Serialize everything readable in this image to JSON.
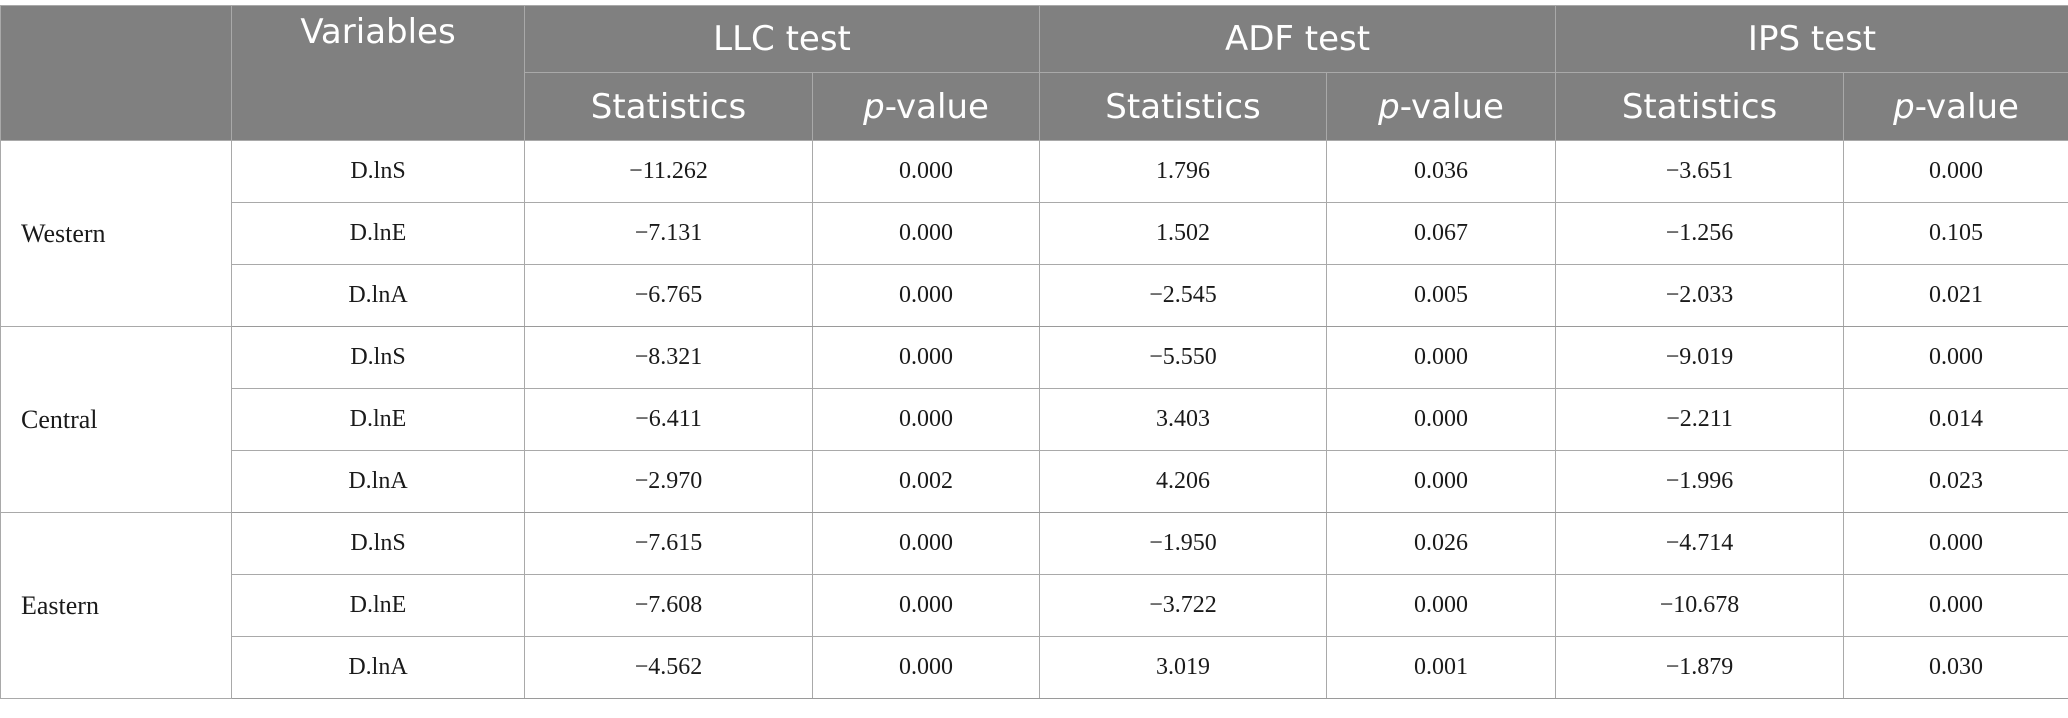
{
  "header": {
    "variables_label": "Variables",
    "groups": [
      "LLC test",
      "ADF test",
      "IPS test"
    ],
    "sub": {
      "statistics_label": "Statistics",
      "pvalue_italic": "p",
      "pvalue_rest": "-value"
    }
  },
  "regions": [
    {
      "name": "Western",
      "rows": [
        {
          "variable": "D.lnS",
          "llc_stat": "−11.262",
          "llc_p": "0.000",
          "adf_stat": "1.796",
          "adf_p": "0.036",
          "ips_stat": "−3.651",
          "ips_p": "0.000"
        },
        {
          "variable": "D.lnE",
          "llc_stat": "−7.131",
          "llc_p": "0.000",
          "adf_stat": "1.502",
          "adf_p": "0.067",
          "ips_stat": "−1.256",
          "ips_p": "0.105"
        },
        {
          "variable": "D.lnA",
          "llc_stat": "−6.765",
          "llc_p": "0.000",
          "adf_stat": "−2.545",
          "adf_p": "0.005",
          "ips_stat": "−2.033",
          "ips_p": "0.021"
        }
      ]
    },
    {
      "name": "Central",
      "rows": [
        {
          "variable": "D.lnS",
          "llc_stat": "−8.321",
          "llc_p": "0.000",
          "adf_stat": "−5.550",
          "adf_p": "0.000",
          "ips_stat": "−9.019",
          "ips_p": "0.000"
        },
        {
          "variable": "D.lnE",
          "llc_stat": "−6.411",
          "llc_p": "0.000",
          "adf_stat": "3.403",
          "adf_p": "0.000",
          "ips_stat": "−2.211",
          "ips_p": "0.014"
        },
        {
          "variable": "D.lnA",
          "llc_stat": "−2.970",
          "llc_p": "0.002",
          "adf_stat": "4.206",
          "adf_p": "0.000",
          "ips_stat": "−1.996",
          "ips_p": "0.023"
        }
      ]
    },
    {
      "name": "Eastern",
      "rows": [
        {
          "variable": "D.lnS",
          "llc_stat": "−7.615",
          "llc_p": "0.000",
          "adf_stat": "−1.950",
          "adf_p": "0.026",
          "ips_stat": "−4.714",
          "ips_p": "0.000"
        },
        {
          "variable": "D.lnE",
          "llc_stat": "−7.608",
          "llc_p": "0.000",
          "adf_stat": "−3.722",
          "adf_p": "0.000",
          "ips_stat": "−10.678",
          "ips_p": "0.000"
        },
        {
          "variable": "D.lnA",
          "llc_stat": "−4.562",
          "llc_p": "0.000",
          "adf_stat": "3.019",
          "adf_p": "0.001",
          "ips_stat": "−1.879",
          "ips_p": "0.030"
        }
      ]
    }
  ],
  "colors": {
    "header_bg": "#808080",
    "header_text": "#ffffff",
    "grid_line": "#a9a9a9"
  }
}
